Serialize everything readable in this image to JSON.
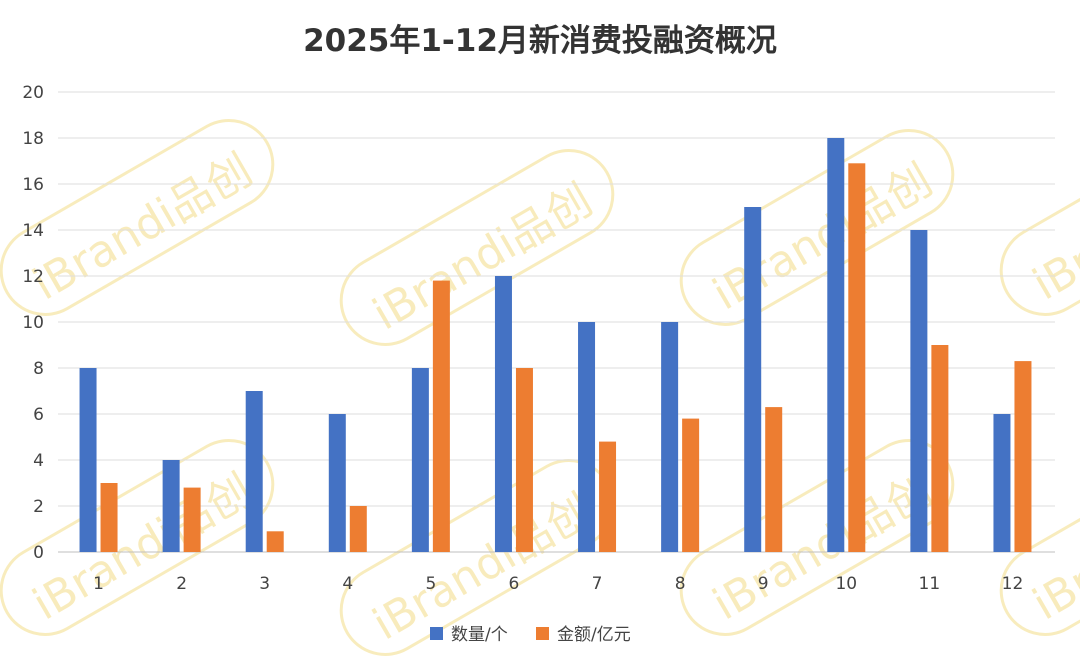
{
  "watermark": {
    "text": "iBrandi品创"
  },
  "chart_data": {
    "type": "bar",
    "title": "2025年1-12月新消费投融资概况",
    "xlabel": "",
    "ylabel": "",
    "categories": [
      "1",
      "2",
      "3",
      "4",
      "5",
      "6",
      "7",
      "8",
      "9",
      "10",
      "11",
      "12"
    ],
    "series": [
      {
        "name": "数量/个",
        "color": "#4472c4",
        "values": [
          8,
          4,
          7,
          6,
          8,
          12,
          10,
          10,
          15,
          18,
          14,
          6
        ]
      },
      {
        "name": "金额/亿元",
        "color": "#ed7d31",
        "values": [
          3.0,
          2.8,
          0.9,
          2.0,
          11.8,
          8.0,
          4.8,
          5.8,
          6.3,
          16.9,
          9.0,
          8.3
        ]
      }
    ],
    "ylim": [
      0,
      20
    ],
    "yticks": [
      0,
      2,
      4,
      6,
      8,
      10,
      12,
      14,
      16,
      18,
      20
    ],
    "grid": true,
    "legend_position": "bottom-center"
  }
}
